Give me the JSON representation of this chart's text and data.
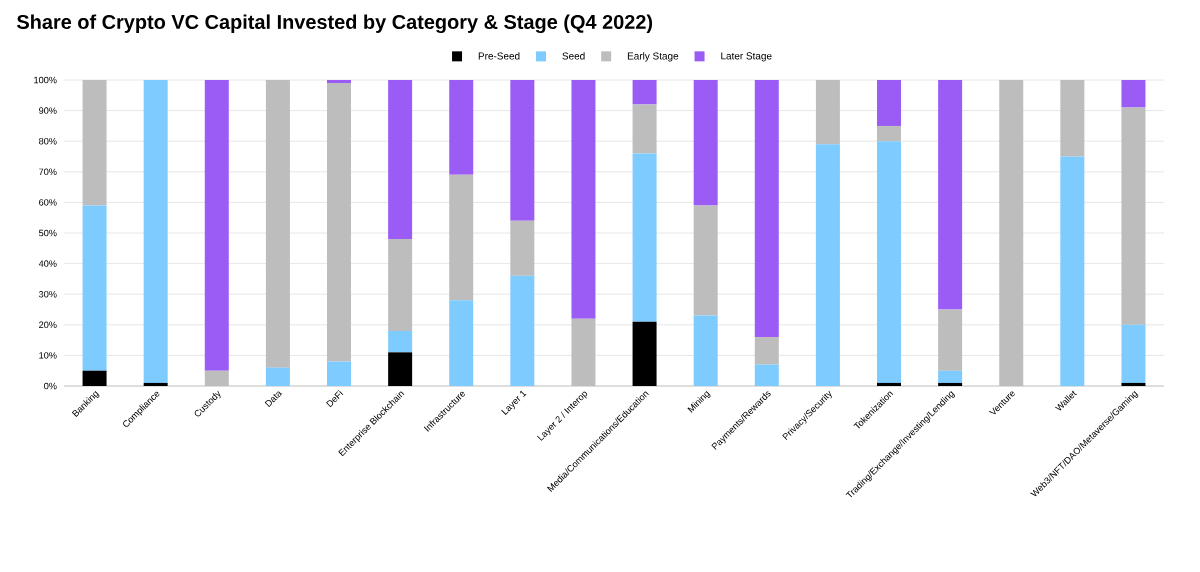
{
  "chart_data": {
    "type": "bar",
    "stacked": true,
    "title": "Share of Crypto VC Capital Invested by Category & Stage (Q4 2022)",
    "categories": [
      "Banking",
      "Compliance",
      "Custody",
      "Data",
      "DeFi",
      "Enterprise Blockchain",
      "Infrastructure",
      "Layer 1",
      "Layer 2 / Interop",
      "Media/Communications/Education",
      "Mining",
      "Payments/Rewards",
      "Privacy/Security",
      "Tokenization",
      "Trading/Exchange/Investing/Lending",
      "Venture",
      "Wallet",
      "Web3/NFT/DAO/Metaverse/Gaming"
    ],
    "series": [
      {
        "name": "Pre-Seed",
        "color": "#000000",
        "values": [
          5,
          1,
          0,
          0,
          0,
          11,
          0,
          0,
          0,
          21,
          0,
          0,
          0,
          1,
          1,
          0,
          0,
          1
        ]
      },
      {
        "name": "Seed",
        "color": "#7ecbff",
        "values": [
          54,
          99,
          0,
          6,
          8,
          7,
          28,
          36,
          0,
          55,
          23,
          7,
          79,
          79,
          4,
          0,
          75,
          19
        ]
      },
      {
        "name": "Early Stage",
        "color": "#bdbdbd",
        "values": [
          41,
          0,
          5,
          94,
          91,
          30,
          41,
          18,
          22,
          16,
          36,
          9,
          21,
          5,
          20,
          100,
          25,
          71
        ]
      },
      {
        "name": "Later Stage",
        "color": "#9b5cf6",
        "values": [
          0,
          0,
          95,
          0,
          1,
          52,
          31,
          46,
          78,
          8,
          41,
          84,
          0,
          15,
          75,
          0,
          0,
          9
        ]
      }
    ],
    "ylim": [
      0,
      100
    ],
    "yticks": [
      {
        "value": 0,
        "label": "0%"
      },
      {
        "value": 10,
        "label": "10%"
      },
      {
        "value": 20,
        "label": "20%"
      },
      {
        "value": 30,
        "label": "30%"
      },
      {
        "value": 40,
        "label": "40%"
      },
      {
        "value": 50,
        "label": "50%"
      },
      {
        "value": 60,
        "label": "60%"
      },
      {
        "value": 70,
        "label": "70%"
      },
      {
        "value": 80,
        "label": "80%"
      },
      {
        "value": 90,
        "label": "90%"
      },
      {
        "value": 100,
        "label": "100%"
      }
    ],
    "grid": "y",
    "legend": "top"
  }
}
